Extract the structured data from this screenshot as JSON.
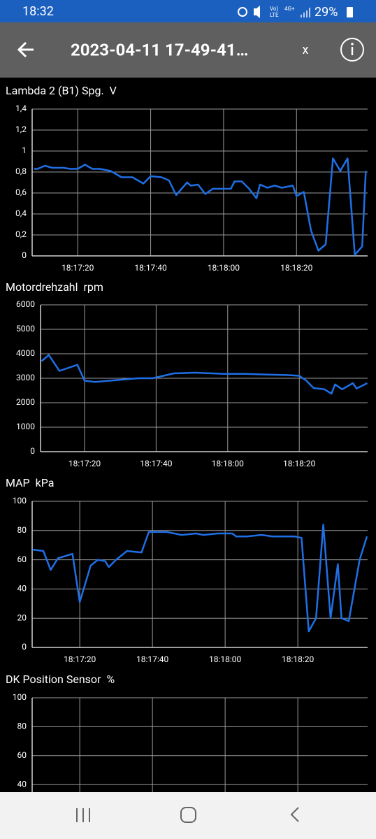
{
  "status_bar": {
    "time": "18:32",
    "battery": "29%"
  },
  "toolbar": {
    "title": "2023-04-11 17-49-41…",
    "close": "x"
  },
  "chart_data": [
    {
      "type": "line",
      "title": "Lambda 2 (B1) Spg.  V",
      "color": "#1f6fe5",
      "grid": true,
      "x": [
        65828,
        65829,
        65831,
        65833,
        65836,
        65838,
        65840,
        65842,
        65844,
        65846,
        65849,
        65852,
        65855,
        65856,
        65858,
        65860,
        65863,
        65865,
        65867,
        65870,
        65871,
        65873,
        65875,
        65877,
        65880,
        65882,
        65883,
        65885,
        65887,
        65889,
        65890,
        65892,
        65894,
        65896,
        65899,
        65900,
        65902,
        65904,
        65906,
        65908,
        65910,
        65912,
        65914,
        65916,
        65918,
        65919
      ],
      "values": [
        0.83,
        0.83,
        0.86,
        0.84,
        0.84,
        0.83,
        0.83,
        0.87,
        0.83,
        0.83,
        0.81,
        0.75,
        0.75,
        0.73,
        0.69,
        0.76,
        0.75,
        0.72,
        0.58,
        0.7,
        0.67,
        0.68,
        0.59,
        0.64,
        0.64,
        0.64,
        0.71,
        0.71,
        0.64,
        0.55,
        0.68,
        0.65,
        0.67,
        0.65,
        0.67,
        0.57,
        0.61,
        0.24,
        0.05,
        0.11,
        0.93,
        0.81,
        0.93,
        0.01,
        0.09,
        0.81
      ],
      "xlim": [
        65827.5,
        65919.5
      ],
      "xticks": [
        {
          "value": 65840,
          "label": "18:17:20"
        },
        {
          "value": 65860,
          "label": "18:17:40"
        },
        {
          "value": 65880,
          "label": "18:18:00"
        },
        {
          "value": 65900,
          "label": "18:18:20"
        }
      ],
      "ylim": [
        0,
        1.4
      ],
      "yticks": [
        0,
        {
          "value": 0.2,
          "label": "0,2"
        },
        {
          "value": 0.4,
          "label": "0,4"
        },
        {
          "value": 0.6,
          "label": "0,6"
        },
        {
          "value": 0.8,
          "label": "0,8"
        },
        1,
        {
          "value": 1.2,
          "label": "1,2"
        },
        {
          "value": 1.4,
          "label": "1,4"
        }
      ]
    },
    {
      "type": "line",
      "title": "Motordrehzahl  rpm",
      "color": "#1f6fe5",
      "grid": true,
      "x": [
        65828,
        65830,
        65833,
        65838,
        65840,
        65843,
        65851,
        65855,
        65859,
        65865,
        65871,
        65879,
        65885,
        65891,
        65897,
        65900,
        65902,
        65904,
        65907,
        65909,
        65910,
        65912,
        65915,
        65916,
        65919
      ],
      "values": [
        3700,
        3950,
        3300,
        3550,
        2900,
        2850,
        2950,
        3000,
        3000,
        3200,
        3230,
        3180,
        3180,
        3150,
        3130,
        3100,
        2900,
        2600,
        2550,
        2370,
        2750,
        2550,
        2800,
        2580,
        2800
      ],
      "xlim": [
        65827.7,
        65919.1
      ],
      "xticks": [
        {
          "value": 65840,
          "label": "18:17:20"
        },
        {
          "value": 65860,
          "label": "18:17:40"
        },
        {
          "value": 65880,
          "label": "18:18:00"
        },
        {
          "value": 65900,
          "label": "18:18:20"
        }
      ],
      "ylim": [
        0,
        6000
      ],
      "yticks": [
        0,
        1000,
        2000,
        3000,
        4000,
        5000,
        6000
      ]
    },
    {
      "type": "line",
      "title": "MAP  kPa",
      "color": "#1f6fe5",
      "grid": true,
      "x": [
        65827,
        65830,
        65832,
        65834,
        65838,
        65840,
        65843,
        65845,
        65847,
        65848,
        65850,
        65853,
        65857,
        65859,
        65864,
        65868,
        65872,
        65874,
        65878,
        65882,
        65883,
        65886,
        65890,
        65893,
        65899,
        65901,
        65903,
        65905,
        65907,
        65909,
        65911,
        65912,
        65914,
        65917,
        65919
      ],
      "values": [
        67,
        66,
        53,
        61,
        64,
        31,
        56,
        60,
        59,
        55,
        60,
        66,
        65,
        79,
        79,
        77,
        78,
        77,
        78,
        78,
        76,
        76,
        77,
        76,
        76,
        75,
        11,
        20,
        84,
        20,
        57,
        20,
        18,
        60,
        76
      ],
      "xlim": [
        65826.9,
        65919.2
      ],
      "xticks": [
        {
          "value": 65840,
          "label": "18:17:20"
        },
        {
          "value": 65860,
          "label": "18:17:40"
        },
        {
          "value": 65880,
          "label": "18:18:00"
        },
        {
          "value": 65900,
          "label": "18:18:20"
        }
      ],
      "ylim": [
        0,
        100
      ],
      "yticks": [
        0,
        20,
        40,
        60,
        80,
        100
      ]
    },
    {
      "type": "line",
      "title": "DK Position Sensor  %",
      "grid": true,
      "xlim": [
        65826.9,
        65919.2
      ],
      "xticks": [
        65840,
        65860,
        65880,
        65900
      ],
      "ylim": [
        0,
        100
      ],
      "yticks": [
        40,
        60,
        80,
        100
      ]
    }
  ]
}
